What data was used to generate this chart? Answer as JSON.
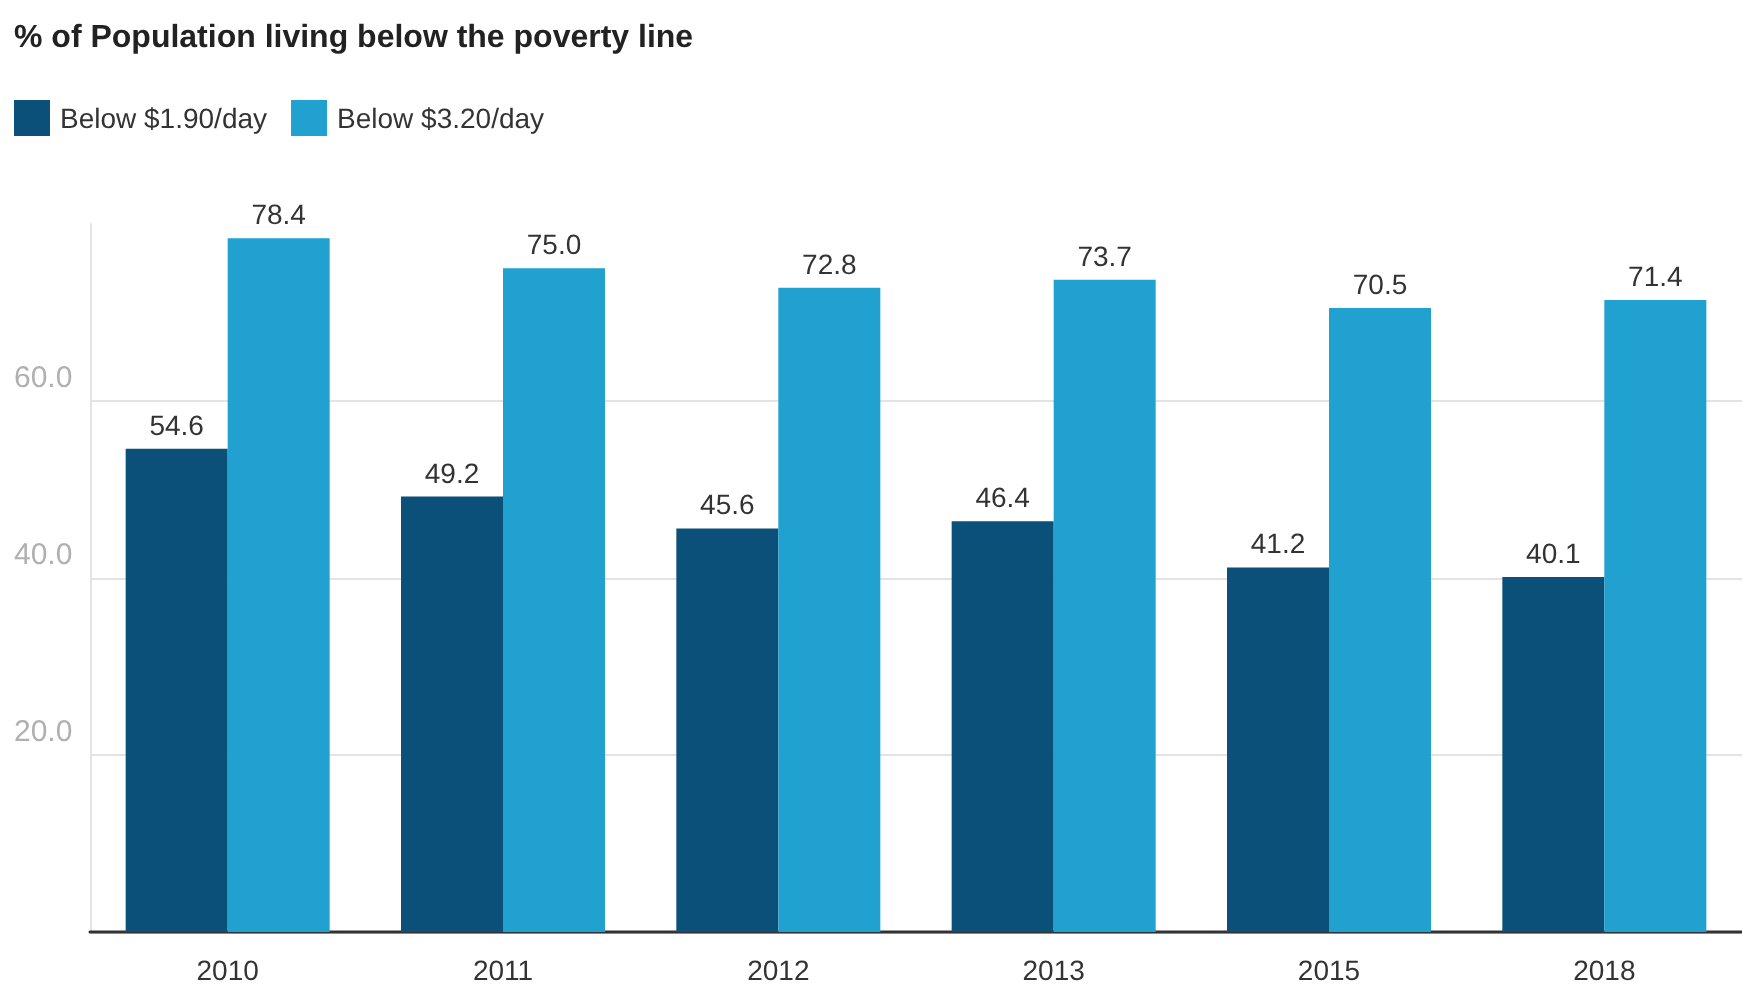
{
  "chart_data": {
    "type": "bar",
    "title": "% of Population living below the poverty line",
    "categories": [
      "2010",
      "2011",
      "2012",
      "2013",
      "2015",
      "2018"
    ],
    "series": [
      {
        "name": "Below $1.90/day",
        "color": "#0b5079",
        "values": [
          54.6,
          49.2,
          45.6,
          46.4,
          41.2,
          40.1
        ],
        "value_labels": [
          "54.6",
          "49.2",
          "45.6",
          "46.4",
          "41.2",
          "40.1"
        ]
      },
      {
        "name": "Below $3.20/day",
        "color": "#20a1cf",
        "values": [
          78.4,
          75.0,
          72.8,
          73.7,
          70.5,
          71.4
        ],
        "value_labels": [
          "78.4",
          "75.0",
          "72.8",
          "73.7",
          "70.5",
          "71.4"
        ]
      }
    ],
    "ylim": [
      0,
      80
    ],
    "yticks": [
      {
        "value": 0,
        "label": null
      },
      {
        "value": 20,
        "label": "20.0"
      },
      {
        "value": 40,
        "label": "40.0"
      },
      {
        "value": 60,
        "label": "60.0"
      }
    ],
    "grid": "y",
    "legend": "top left"
  }
}
